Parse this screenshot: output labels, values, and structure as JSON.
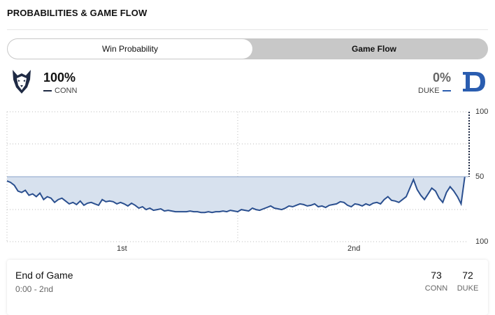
{
  "header": {
    "title": "PROBABILITIES & GAME FLOW"
  },
  "tabs": [
    {
      "label": "Win Probability",
      "active": false
    },
    {
      "label": "Game Flow",
      "active": true
    }
  ],
  "teams": {
    "home": {
      "pct": "100%",
      "abbr": "CONN",
      "color": "#1f2a44"
    },
    "away": {
      "pct": "0%",
      "abbr": "DUKE",
      "color": "#2a5db0"
    }
  },
  "chart_data": {
    "type": "area",
    "y_ticks": [
      "100",
      "50",
      "100"
    ],
    "x_ticks": [
      "1st",
      "2nd"
    ],
    "ylim": [
      0,
      100
    ],
    "series": [
      {
        "values": [
          44,
          42,
          38,
          30,
          28,
          31,
          24,
          26,
          22,
          27,
          18,
          22,
          20,
          14,
          18,
          20,
          16,
          12,
          14,
          11,
          16,
          10,
          13,
          14,
          12,
          10,
          18,
          15,
          16,
          15,
          12,
          14,
          12,
          9,
          13,
          10,
          6,
          8,
          4,
          6,
          3,
          4,
          5,
          2,
          3,
          2,
          1,
          1,
          1,
          1,
          2,
          1,
          1,
          0,
          0,
          1,
          0,
          1,
          1,
          2,
          1,
          3,
          2,
          1,
          4,
          3,
          2,
          6,
          4,
          3,
          5,
          7,
          9,
          6,
          5,
          4,
          6,
          9,
          8,
          10,
          12,
          11,
          9,
          10,
          12,
          8,
          9,
          7,
          10,
          11,
          12,
          15,
          14,
          10,
          8,
          12,
          11,
          9,
          12,
          10,
          13,
          14,
          12,
          18,
          22,
          17,
          16,
          14,
          18,
          22,
          34,
          46,
          32,
          24,
          18,
          26,
          34,
          30,
          20,
          14,
          28,
          36,
          30,
          22,
          12,
          50,
          100
        ]
      }
    ],
    "colors": {
      "line": "#2a4f8f",
      "fill": "#d7e1ee"
    }
  },
  "footer": {
    "status": "End of Game",
    "clock": "0:00 - 2nd",
    "home_score": "73",
    "away_score": "72",
    "home_abbr": "CONN",
    "away_abbr": "DUKE"
  }
}
